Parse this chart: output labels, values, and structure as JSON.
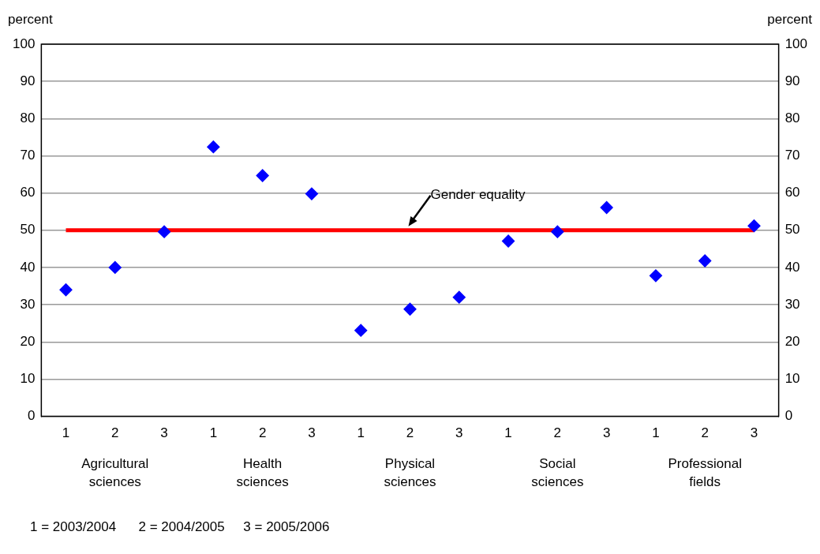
{
  "chart_data": {
    "type": "scatter",
    "categories": [
      "1",
      "2",
      "3",
      "1",
      "2",
      "3",
      "1",
      "2",
      "3",
      "1",
      "2",
      "3",
      "1",
      "2",
      "3"
    ],
    "series": [
      {
        "color": "#0000ff",
        "values": [
          34,
          40,
          49.6,
          72.4,
          64.7,
          59.8,
          23.1,
          28.8,
          32,
          47.1,
          49.6,
          56.1,
          37.8,
          41.8,
          51.2
        ]
      }
    ],
    "ylabel": "percent",
    "y2label": "percent",
    "ylim": [
      0,
      100
    ],
    "yticks": [
      0,
      10,
      20,
      30,
      40,
      50,
      60,
      70,
      80,
      90,
      100
    ],
    "y2lim": [
      0,
      100
    ],
    "y2ticks": [
      0,
      10,
      20,
      30,
      40,
      50,
      60,
      70,
      80,
      90,
      100
    ],
    "ref_lines": [
      {
        "axis": "y",
        "value": 50,
        "label": "Gender equality",
        "color": "#ff0000"
      }
    ],
    "annotations": [
      "Agricultural sciences",
      "Health sciences",
      "Physical sciences",
      "Social sciences",
      "Professional fields",
      "1 = 2003/2004      2 = 2004/2005     3 = 2005/2006"
    ],
    "grid": "y",
    "legend": false,
    "marker": "diamond"
  }
}
